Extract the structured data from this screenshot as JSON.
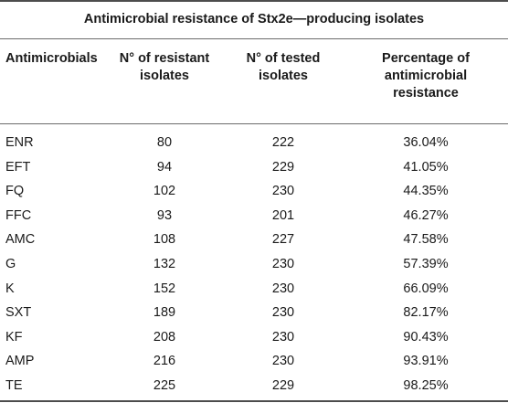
{
  "caption": "Antimicrobial resistance of Stx2e—producing isolates",
  "headers": [
    [
      "Antimicrobials"
    ],
    [
      "N° of resistant",
      "isolates"
    ],
    [
      "N° of tested",
      "isolates"
    ],
    [
      "Percentage of",
      "antimicrobial",
      "resistance"
    ]
  ],
  "rows": [
    [
      "ENR",
      "80",
      "222",
      "36.04%"
    ],
    [
      "EFT",
      "94",
      "229",
      "41.05%"
    ],
    [
      "FQ",
      "102",
      "230",
      "44.35%"
    ],
    [
      "FFC",
      "93",
      "201",
      "46.27%"
    ],
    [
      "AMC",
      "108",
      "227",
      "47.58%"
    ],
    [
      "G",
      "132",
      "230",
      "57.39%"
    ],
    [
      "K",
      "152",
      "230",
      "66.09%"
    ],
    [
      "SXT",
      "189",
      "230",
      "82.17%"
    ],
    [
      "KF",
      "208",
      "230",
      "90.43%"
    ],
    [
      "AMP",
      "216",
      "230",
      "93.91%"
    ],
    [
      "TE",
      "225",
      "229",
      "98.25%"
    ]
  ]
}
